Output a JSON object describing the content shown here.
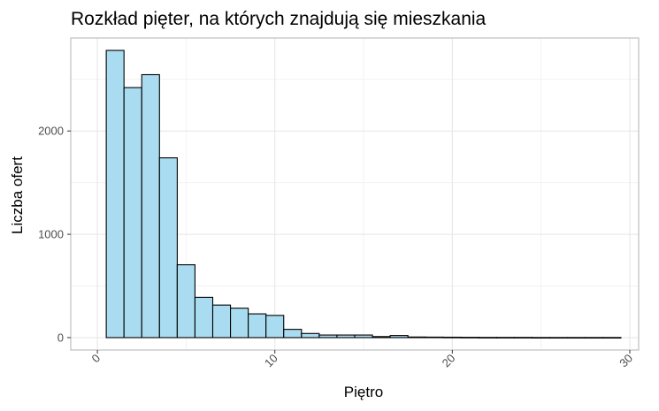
{
  "chart_data": {
    "type": "bar",
    "subtype": "histogram",
    "title": "Rozkład pięter, na których znajdują się mieszkania",
    "xlabel": "Piętro",
    "ylabel": "Liczba ofert",
    "xlim": [
      -1.5,
      30.5
    ],
    "ylim": [
      -120,
      2900
    ],
    "xticks": [
      0,
      10,
      20,
      30
    ],
    "yticks": [
      0,
      1000,
      2000
    ],
    "grid": true,
    "bin_width": 1,
    "bins": [
      {
        "x": 1,
        "value": 2780
      },
      {
        "x": 2,
        "value": 2420
      },
      {
        "x": 3,
        "value": 2545
      },
      {
        "x": 4,
        "value": 1740
      },
      {
        "x": 5,
        "value": 705
      },
      {
        "x": 6,
        "value": 390
      },
      {
        "x": 7,
        "value": 315
      },
      {
        "x": 8,
        "value": 285
      },
      {
        "x": 9,
        "value": 230
      },
      {
        "x": 10,
        "value": 215
      },
      {
        "x": 11,
        "value": 80
      },
      {
        "x": 12,
        "value": 40
      },
      {
        "x": 13,
        "value": 25
      },
      {
        "x": 14,
        "value": 25
      },
      {
        "x": 15,
        "value": 25
      },
      {
        "x": 16,
        "value": 10
      },
      {
        "x": 17,
        "value": 20
      },
      {
        "x": 18,
        "value": 6
      },
      {
        "x": 19,
        "value": 5
      },
      {
        "x": 20,
        "value": 4
      },
      {
        "x": 21,
        "value": 3
      },
      {
        "x": 22,
        "value": 2
      },
      {
        "x": 23,
        "value": 2
      },
      {
        "x": 24,
        "value": 2
      },
      {
        "x": 25,
        "value": 1
      },
      {
        "x": 26,
        "value": 1
      },
      {
        "x": 27,
        "value": 1
      },
      {
        "x": 28,
        "value": 1
      },
      {
        "x": 29,
        "value": 1
      }
    ],
    "bar_fill": "#a9dcf0",
    "bar_stroke": "#000000",
    "panel_border": "#b3b3b3",
    "grid_major": "#e5e5e5",
    "grid_minor": "#f2f2f2"
  }
}
